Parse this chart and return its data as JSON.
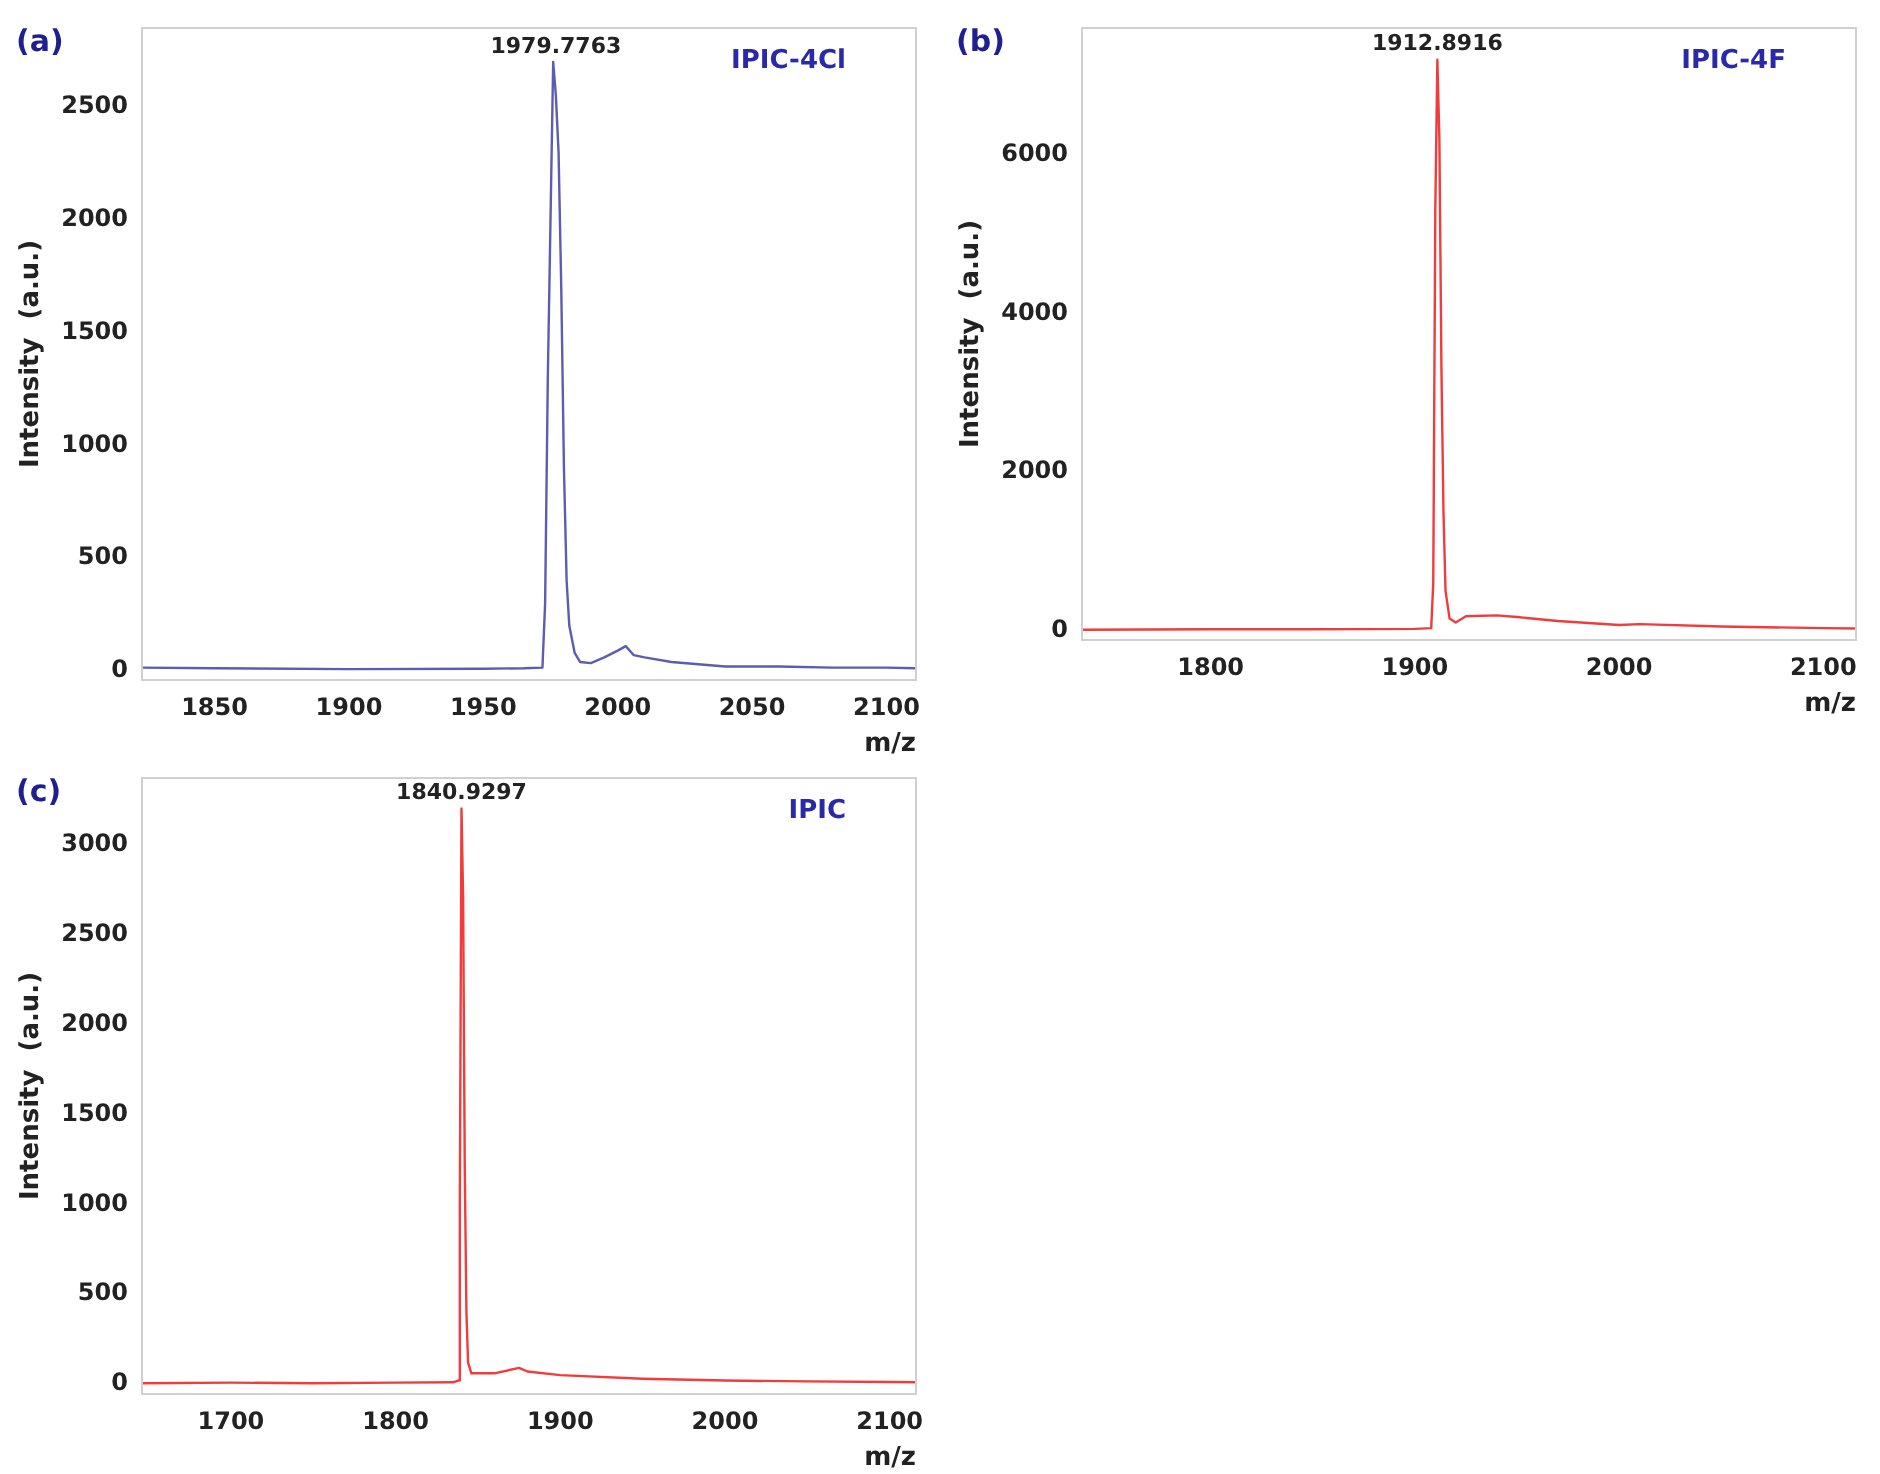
{
  "chart_data": [
    {
      "type": "line",
      "title": "(a)",
      "xlabel": "m/z",
      "ylabel": "Intensity  (a.u.)",
      "marker": "none",
      "annotations": [
        "IPIC-4Cl",
        {
          "text": "1979.7763",
          "x": 1977,
          "y": 2700
        }
      ],
      "xlim": [
        1823,
        2111
      ],
      "xticks": [
        1850,
        1900,
        1950,
        2000,
        2050,
        2100
      ],
      "ylim": [
        -40,
        2850
      ],
      "yticks": [
        0,
        500,
        1000,
        1500,
        2000,
        2500
      ],
      "series": [
        {
          "color": "#5c5cb0",
          "x": [
            1823,
            1850,
            1900,
            1950,
            1965,
            1972,
            1973,
            1974,
            1975,
            1976,
            1977,
            1978,
            1979,
            1980,
            1981,
            1982,
            1984,
            1986,
            1990,
            1995,
            2000,
            2003,
            2006,
            2010,
            2020,
            2040,
            2060,
            2080,
            2100,
            2111
          ],
          "values": [
            15,
            12,
            8,
            10,
            12,
            15,
            300,
            1300,
            2000,
            2700,
            2550,
            2300,
            1700,
            900,
            400,
            200,
            80,
            40,
            35,
            60,
            90,
            110,
            70,
            60,
            40,
            20,
            20,
            15,
            15,
            12
          ]
        }
      ]
    },
    {
      "type": "line",
      "title": "(b)",
      "xlabel": "m/z",
      "ylabel": "Intensity  (a.u.)",
      "marker": "none",
      "annotations": [
        "IPIC-4F",
        {
          "text": "1912.8916",
          "x": 1911,
          "y": 7200
        }
      ],
      "xlim": [
        1737,
        2116
      ],
      "xticks": [
        1800,
        1900,
        2000,
        2100
      ],
      "ylim": [
        -120,
        7600
      ],
      "yticks": [
        0,
        2000,
        4000,
        6000
      ],
      "series": [
        {
          "color": "#f03c3c",
          "x": [
            1737,
            1800,
            1850,
            1900,
            1908,
            1909,
            1910,
            1911,
            1912,
            1913,
            1914,
            1915,
            1917,
            1920,
            1925,
            1940,
            1950,
            1970,
            2000,
            2010,
            2050,
            2100,
            2116
          ],
          "values": [
            10,
            15,
            15,
            20,
            30,
            600,
            5300,
            7200,
            6200,
            3300,
            1500,
            500,
            150,
            100,
            180,
            190,
            170,
            120,
            70,
            80,
            50,
            30,
            25
          ]
        }
      ]
    },
    {
      "type": "line",
      "title": "(c)",
      "xlabel": "m/z",
      "ylabel": "Intensity  (a.u.)",
      "marker": "none",
      "annotations": [
        "IPIC",
        {
          "text": "1840.9297",
          "x": 1840,
          "y": 3200
        }
      ],
      "xlim": [
        1646,
        2116
      ],
      "xticks": [
        1700,
        1800,
        1900,
        2000,
        2100
      ],
      "ylim": [
        -55,
        3370
      ],
      "yticks": [
        0,
        500,
        1000,
        1500,
        2000,
        2500,
        3000
      ],
      "series": [
        {
          "color": "#f03c3c",
          "x": [
            1646,
            1700,
            1750,
            1800,
            1835,
            1838,
            1839,
            1840,
            1841,
            1842,
            1843,
            1844,
            1846,
            1860,
            1875,
            1880,
            1900,
            1950,
            2000,
            2050,
            2100,
            2116
          ],
          "values": [
            5,
            8,
            5,
            8,
            10,
            20,
            1000,
            3200,
            2700,
            1200,
            400,
            120,
            60,
            60,
            90,
            70,
            50,
            30,
            20,
            15,
            12,
            10
          ]
        }
      ]
    }
  ]
}
